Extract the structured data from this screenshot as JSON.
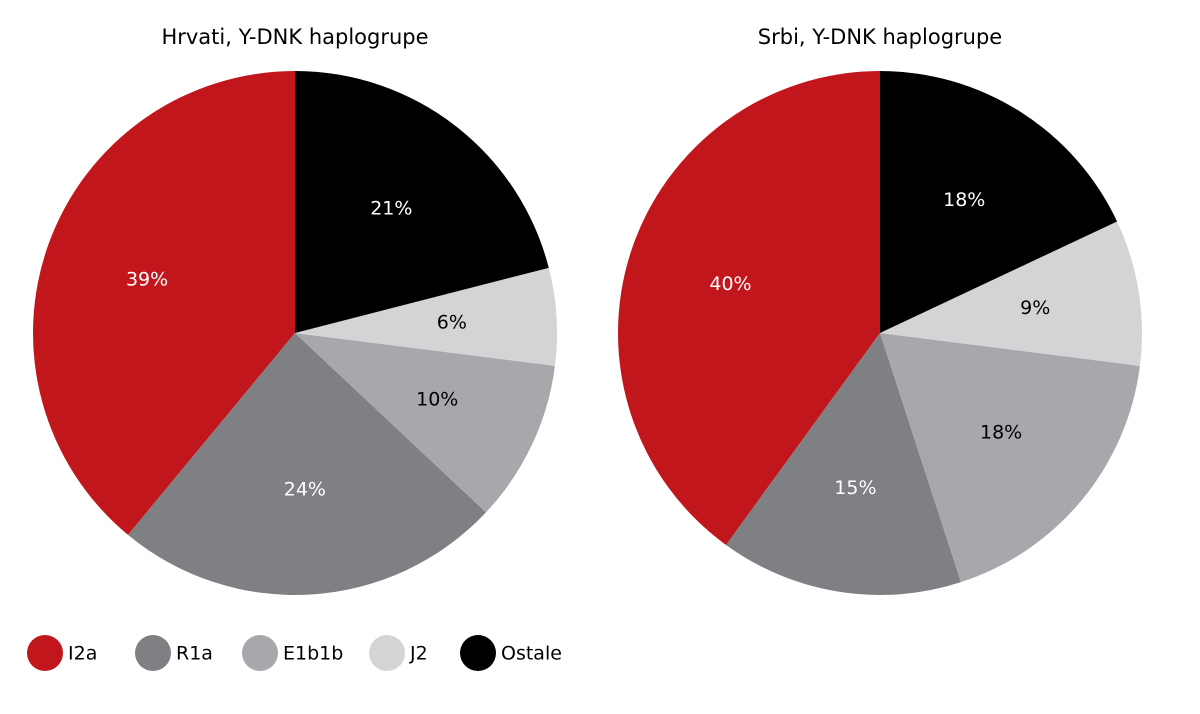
{
  "chart_data": [
    {
      "type": "pie",
      "title": "Hrvati, Y-DNK haplogrupe",
      "categories": [
        "I2a",
        "R1a",
        "E1b1b",
        "J2",
        "Ostale"
      ],
      "values": [
        39,
        24,
        10,
        6,
        21
      ],
      "value_labels": [
        "39%",
        "24%",
        "10%",
        "6%",
        "21%"
      ],
      "colors": [
        "#c0161c",
        "#7f8084",
        "#a7a8ab",
        "#d3d4d6",
        "#000000"
      ]
    },
    {
      "type": "pie",
      "title": "Srbi, Y-DNK haplogrupe",
      "categories": [
        "I2a",
        "R1a",
        "E1b1b",
        "J2",
        "Ostale"
      ],
      "values": [
        40,
        15,
        18,
        9,
        18
      ],
      "value_labels": [
        "40%",
        "15%",
        "18%",
        "9%",
        "18%"
      ],
      "colors": [
        "#c0161c",
        "#7f8084",
        "#a7a8ab",
        "#d3d4d6",
        "#000000"
      ]
    }
  ]
}
